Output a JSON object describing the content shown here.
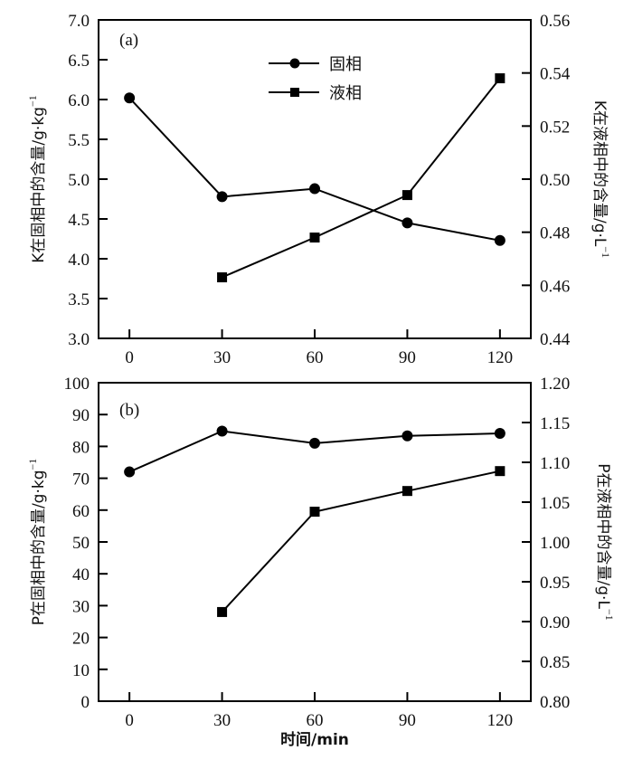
{
  "chart_data": [
    {
      "type": "line",
      "panel_label": "(a)",
      "x": [
        0,
        30,
        60,
        90,
        120
      ],
      "xticks": [
        0,
        30,
        60,
        90,
        120
      ],
      "xlim": [
        -10,
        130
      ],
      "ylabel_left": "K在固相中的含量/g·kg",
      "ylabel_left_sup": "−1",
      "ylabel_right": "K在液相中的含量/g·L",
      "ylabel_right_sup": "−1",
      "ylim_left": [
        3.0,
        7.0
      ],
      "yticks_left": [
        "3.0",
        "3.5",
        "4.0",
        "4.5",
        "5.0",
        "5.5",
        "6.0",
        "6.5",
        "7.0"
      ],
      "ylim_right": [
        0.44,
        0.56
      ],
      "yticks_right": [
        "0.44",
        "0.46",
        "0.48",
        "0.50",
        "0.52",
        "0.54",
        "0.56"
      ],
      "legend": {
        "position": "top-center",
        "entries": [
          "固相",
          "液相"
        ]
      },
      "series": [
        {
          "name": "固相",
          "axis": "left",
          "marker": "circle",
          "x": [
            0,
            30,
            60,
            90,
            120
          ],
          "values": [
            6.02,
            4.78,
            4.88,
            4.45,
            4.23
          ]
        },
        {
          "name": "液相",
          "axis": "right",
          "marker": "square",
          "x": [
            30,
            60,
            90,
            120
          ],
          "values": [
            0.463,
            0.478,
            0.494,
            0.538
          ]
        }
      ]
    },
    {
      "type": "line",
      "panel_label": "(b)",
      "x": [
        0,
        30,
        60,
        90,
        120
      ],
      "xticks": [
        0,
        30,
        60,
        90,
        120
      ],
      "xlim": [
        -10,
        130
      ],
      "xlabel": "时间/min",
      "ylabel_left": "P在固相中的含量/g·kg",
      "ylabel_left_sup": "−1",
      "ylabel_right": "P在液相中的含量/g·L",
      "ylabel_right_sup": "−1",
      "ylim_left": [
        0,
        100
      ],
      "yticks_left": [
        "0",
        "10",
        "20",
        "30",
        "40",
        "50",
        "60",
        "70",
        "80",
        "90",
        "100"
      ],
      "ylim_right": [
        0.8,
        1.2
      ],
      "yticks_right": [
        "0.80",
        "0.85",
        "0.90",
        "0.95",
        "1.00",
        "1.05",
        "1.10",
        "1.15",
        "1.20"
      ],
      "series": [
        {
          "name": "固相",
          "axis": "left",
          "marker": "circle",
          "x": [
            0,
            30,
            60,
            90,
            120
          ],
          "values": [
            72.0,
            84.8,
            81.0,
            83.3,
            84.1
          ]
        },
        {
          "name": "液相",
          "axis": "right",
          "marker": "square",
          "x": [
            30,
            60,
            90,
            120
          ],
          "values": [
            0.912,
            1.038,
            1.064,
            1.089
          ]
        }
      ]
    }
  ],
  "colors": {
    "line": "#000000",
    "background": "#ffffff"
  }
}
